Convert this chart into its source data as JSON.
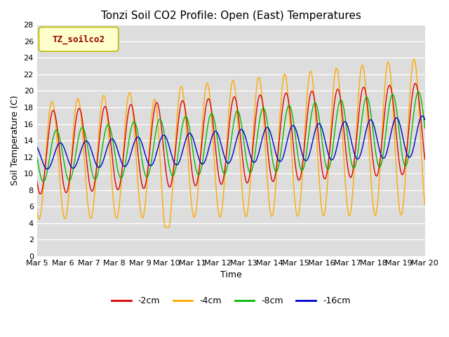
{
  "title": "Tonzi Soil CO2 Profile: Open (East) Temperatures",
  "xlabel": "Time",
  "ylabel": "Soil Temperature (C)",
  "ylim": [
    0,
    28
  ],
  "yticks": [
    0,
    2,
    4,
    6,
    8,
    10,
    12,
    14,
    16,
    18,
    20,
    22,
    24,
    26,
    28
  ],
  "xlim_days": [
    0,
    15
  ],
  "x_tick_labels": [
    "Mar 5",
    "Mar 6",
    "Mar 7",
    "Mar 8",
    "Mar 9",
    "Mar 10",
    "Mar 11",
    "Mar 12",
    "Mar 13",
    "Mar 14",
    "Mar 15",
    "Mar 16",
    "Mar 17",
    "Mar 18",
    "Mar 19",
    "Mar 20"
  ],
  "colors": {
    "-2cm": "#dd0000",
    "-4cm": "#ffaa00",
    "-8cm": "#00bb00",
    "-16cm": "#0000cc"
  },
  "legend_label": "TZ_soilco2",
  "legend_bg": "#ffffcc",
  "legend_border": "#bbbb00",
  "bg_color": "#dddddd",
  "fig_bg": "#ffffff"
}
